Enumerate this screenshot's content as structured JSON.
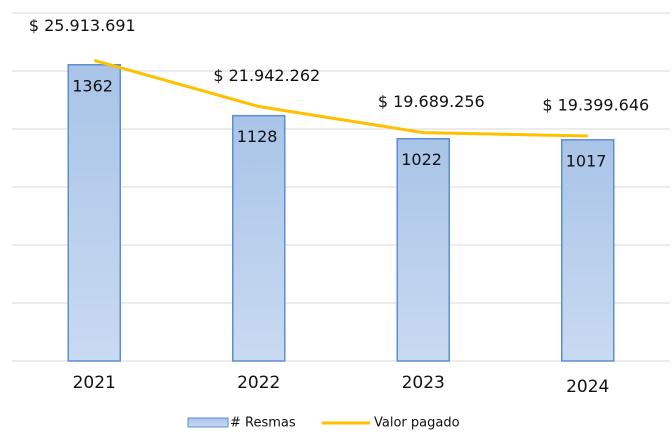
{
  "chart_data": {
    "type": "bar-line",
    "categories": [
      "2021",
      "2022",
      "2023",
      "2024"
    ],
    "series": [
      {
        "name": "# Resmas",
        "type": "bar",
        "color": "#a9c4e8",
        "values": [
          1362,
          1128,
          1022,
          1017
        ]
      },
      {
        "name": "Valor pagado",
        "type": "line",
        "axis": "y2",
        "color": "#ffc000",
        "values": [
          25913691,
          21942262,
          19689256,
          19399646
        ],
        "value_labels": [
          "$ 25.913.691",
          "$ 21.942.262",
          "$ 19.689.256",
          "$ 19.399.646"
        ]
      }
    ],
    "ylim": [
      0,
      1600
    ],
    "y2lim": [
      0,
      30000000
    ],
    "y2ticks": [
      0,
      5000000,
      10000000,
      15000000,
      20000000,
      25000000,
      30000000
    ],
    "grid": true,
    "legend": "bottom"
  }
}
